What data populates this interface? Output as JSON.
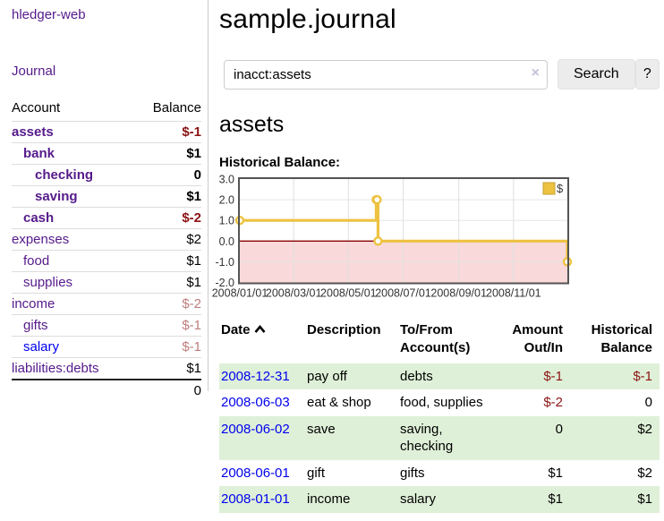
{
  "brand": "hledger-web",
  "nav": {
    "journal": "Journal"
  },
  "sidebar": {
    "headers": {
      "account": "Account",
      "balance": "Balance"
    },
    "accounts": [
      {
        "name": "assets",
        "balance": "$-1"
      },
      {
        "name": "bank",
        "balance": "$1"
      },
      {
        "name": "checking",
        "balance": "0"
      },
      {
        "name": "saving",
        "balance": "$1"
      },
      {
        "name": "cash",
        "balance": "$-2"
      },
      {
        "name": "expenses",
        "balance": "$2"
      },
      {
        "name": "food",
        "balance": "$1"
      },
      {
        "name": "supplies",
        "balance": "$1"
      },
      {
        "name": "income",
        "balance": "$-2"
      },
      {
        "name": "gifts",
        "balance": "$-1"
      },
      {
        "name": "salary",
        "balance": "$-1"
      },
      {
        "name": "liabilities:debts",
        "balance": "$1"
      }
    ],
    "total": "0"
  },
  "header": {
    "title": "sample.journal"
  },
  "search": {
    "value": "inacct:assets",
    "clear_icon": "×",
    "button": "Search",
    "help_button": "?"
  },
  "account_view": {
    "title": "assets",
    "chart_label": "Historical Balance:"
  },
  "chart_data": {
    "type": "line",
    "style": "step",
    "title": "Historical Balance",
    "legend": {
      "label": "$",
      "position": "top-right"
    },
    "series": [
      {
        "name": "$",
        "color": "#edc240",
        "points": [
          {
            "date": "2008-01-01",
            "day": 0,
            "value": 1
          },
          {
            "date": "2008-06-01",
            "day": 152,
            "value": 2
          },
          {
            "date": "2008-06-02",
            "day": 153,
            "value": 2
          },
          {
            "date": "2008-06-03",
            "day": 154,
            "value": 0
          },
          {
            "date": "2008-12-31",
            "day": 365,
            "value": -1
          }
        ]
      }
    ],
    "xlim_days": [
      0,
      365
    ],
    "ylim": [
      -2,
      3
    ],
    "x_ticks": [
      {
        "label": "2008/01/01",
        "day": 0
      },
      {
        "label": "2008/03/01",
        "day": 60
      },
      {
        "label": "2008/05/01",
        "day": 121
      },
      {
        "label": "2008/07/01",
        "day": 182
      },
      {
        "label": "2008/09/01",
        "day": 244
      },
      {
        "label": "2008/11/01",
        "day": 305
      }
    ],
    "y_ticks": [
      {
        "label": "3.0",
        "value": 3
      },
      {
        "label": "2.0",
        "value": 2
      },
      {
        "label": "1.0",
        "value": 1
      },
      {
        "label": "0.0",
        "value": 0
      },
      {
        "label": "-1.0",
        "value": -1
      },
      {
        "label": "-2.0",
        "value": -2
      }
    ],
    "grid": true,
    "negative_fill": "#f9d9d9",
    "zero_line_color": "#8b0000",
    "frame_color": "#545454",
    "marker": {
      "shape": "circle",
      "fill": "#ffffff"
    }
  },
  "register": {
    "headers": {
      "date": "Date",
      "description": "Description",
      "accounts": "To/From Account(s)",
      "amount": "Amount Out/In",
      "historical": "Historical Balance"
    },
    "rows": [
      {
        "date": "2008-12-31",
        "description": "pay off",
        "accounts": "debts",
        "amount": "$-1",
        "historical": "$-1"
      },
      {
        "date": "2008-06-03",
        "description": "eat & shop",
        "accounts": "food, supplies",
        "amount": "$-2",
        "historical": "0"
      },
      {
        "date": "2008-06-02",
        "description": "save",
        "accounts": "saving, checking",
        "amount": "0",
        "historical": "$2"
      },
      {
        "date": "2008-06-01",
        "description": "gift",
        "accounts": "gifts",
        "amount": "$1",
        "historical": "$2"
      },
      {
        "date": "2008-01-01",
        "description": "income",
        "accounts": "salary",
        "amount": "$1",
        "historical": "$1"
      }
    ]
  }
}
